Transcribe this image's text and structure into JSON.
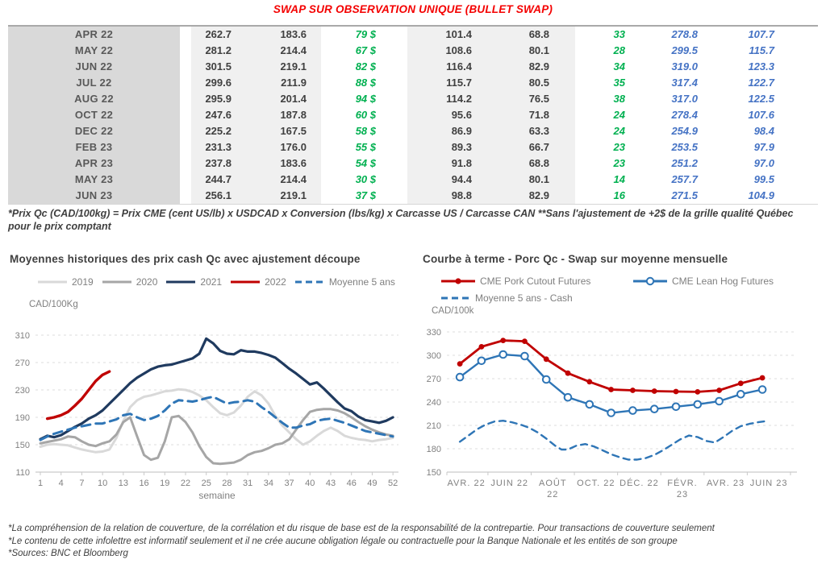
{
  "header": {
    "title": "SWAP SUR OBSERVATION UNIQUE (BULLET SWAP)"
  },
  "table": {
    "rows": [
      {
        "cells": [
          "APR 22",
          "262.7",
          "183.6",
          "79 $",
          "101.4",
          "68.8",
          "33",
          "278.8",
          "107.7"
        ]
      },
      {
        "cells": [
          "MAY 22",
          "281.2",
          "214.4",
          "67 $",
          "108.6",
          "80.1",
          "28",
          "299.5",
          "115.7"
        ]
      },
      {
        "cells": [
          "JUN 22",
          "301.5",
          "219.1",
          "82 $",
          "116.4",
          "82.9",
          "34",
          "319.0",
          "123.3"
        ]
      },
      {
        "cells": [
          "JUL 22",
          "299.6",
          "211.9",
          "88 $",
          "115.7",
          "80.5",
          "35",
          "317.4",
          "122.7"
        ]
      },
      {
        "cells": [
          "AUG 22",
          "295.9",
          "201.4",
          "94 $",
          "114.2",
          "76.5",
          "38",
          "317.0",
          "122.5"
        ]
      },
      {
        "cells": [
          "OCT 22",
          "247.6",
          "187.8",
          "60 $",
          "95.6",
          "71.8",
          "24",
          "278.4",
          "107.6"
        ]
      },
      {
        "cells": [
          "DEC 22",
          "225.2",
          "167.5",
          "58 $",
          "86.9",
          "63.3",
          "24",
          "254.9",
          "98.4"
        ]
      },
      {
        "cells": [
          "FEB 23",
          "231.3",
          "176.0",
          "55 $",
          "89.3",
          "66.7",
          "23",
          "253.5",
          "97.9"
        ]
      },
      {
        "cells": [
          "APR 23",
          "237.8",
          "183.6",
          "54 $",
          "91.8",
          "68.8",
          "23",
          "251.2",
          "97.0"
        ]
      },
      {
        "cells": [
          "MAY 23",
          "244.7",
          "214.4",
          "30 $",
          "94.4",
          "80.1",
          "14",
          "257.7",
          "99.5"
        ]
      },
      {
        "cells": [
          "JUN 23",
          "256.1",
          "219.1",
          "37 $",
          "98.8",
          "82.9",
          "16",
          "271.5",
          "104.9"
        ]
      }
    ],
    "cell_names": [
      "month-cell",
      "value-col-1",
      "value-col-2",
      "basis-dollar-col",
      "value-col-3",
      "value-col-4",
      "basis-col",
      "cme-cad-col",
      "cme-lean-cad-col"
    ]
  },
  "table_footnote": "*Prix Qc (CAD/100kg) = Prix CME (cent US/lb) x USDCAD x Conversion (lbs/kg) x Carcasse US / Carcasse CAN **Sans l'ajustement de +2$ de la grille qualité Québec pour le prix comptant",
  "colors": {
    "title_red": "#f40000",
    "green_accent": "#00b050",
    "blue_accent": "#4472c4",
    "navy_line": "#1f3a5f",
    "red_line": "#c00000",
    "blue_line": "#2e75b6",
    "gray_line": "#a6a6a6",
    "light_gray_line": "#d9d9d9"
  },
  "chart_data": [
    {
      "type": "line",
      "title": "Moyennes historiques des prix cash Qc avec ajustement découpe",
      "unit_label": "CAD/100Kg",
      "xlabel": "semaine",
      "ylim": [
        110,
        310
      ],
      "xlim": [
        0.3,
        52.8
      ],
      "yticks": [
        110,
        150,
        190,
        230,
        270,
        310
      ],
      "xticks": [
        {
          "x": 1,
          "l1": "1"
        },
        {
          "x": 4,
          "l1": "4"
        },
        {
          "x": 7,
          "l1": "7"
        },
        {
          "x": 10,
          "l1": "10"
        },
        {
          "x": 13,
          "l1": "13"
        },
        {
          "x": 16,
          "l1": "16"
        },
        {
          "x": 19,
          "l1": "19"
        },
        {
          "x": 22,
          "l1": "22"
        },
        {
          "x": 25,
          "l1": "25"
        },
        {
          "x": 28,
          "l1": "28"
        },
        {
          "x": 31,
          "l1": "31"
        },
        {
          "x": 34,
          "l1": "34"
        },
        {
          "x": 37,
          "l1": "37"
        },
        {
          "x": 40,
          "l1": "40"
        },
        {
          "x": 43,
          "l1": "43"
        },
        {
          "x": 46,
          "l1": "46"
        },
        {
          "x": 49,
          "l1": "49"
        },
        {
          "x": 52,
          "l1": "52"
        }
      ],
      "xtick_marks": [
        1,
        4,
        7,
        10,
        13,
        16,
        19,
        22,
        25,
        28,
        31,
        34,
        37,
        40,
        43,
        46,
        49,
        52
      ],
      "grid": true,
      "legend_position": "top",
      "series": [
        {
          "name": "2019",
          "color": "#d9d9d9",
          "width": 3,
          "x_start": 1,
          "y": [
            147,
            150,
            151,
            150,
            149,
            146,
            143,
            141,
            139,
            140,
            143,
            160,
            185,
            205,
            215,
            220,
            222,
            225,
            228,
            229,
            231,
            230,
            227,
            222,
            215,
            205,
            196,
            193,
            197,
            207,
            220,
            228,
            222,
            210,
            192,
            178,
            168,
            158,
            150,
            155,
            163,
            170,
            175,
            170,
            163,
            160,
            158,
            157,
            155,
            157,
            158,
            160
          ]
        },
        {
          "name": "2020",
          "color": "#a6a6a6",
          "width": 3,
          "x_start": 1,
          "y": [
            152,
            154,
            156,
            158,
            162,
            161,
            155,
            150,
            148,
            152,
            155,
            165,
            183,
            190,
            162,
            135,
            128,
            131,
            155,
            190,
            192,
            183,
            168,
            148,
            132,
            123,
            122,
            123,
            124,
            128,
            135,
            139,
            141,
            145,
            150,
            152,
            158,
            172,
            186,
            198,
            201,
            202,
            202,
            200,
            196,
            190,
            183,
            177,
            172,
            168,
            165,
            163
          ]
        },
        {
          "name": "2021",
          "color": "#1f3a5f",
          "width": 3.2,
          "x_start": 1,
          "y": [
            158,
            163,
            161,
            164,
            170,
            176,
            181,
            188,
            193,
            200,
            210,
            220,
            230,
            240,
            248,
            254,
            260,
            264,
            266,
            267,
            270,
            273,
            276,
            283,
            305,
            298,
            287,
            283,
            282,
            288,
            286,
            286,
            284,
            281,
            277,
            269,
            261,
            254,
            246,
            238,
            241,
            232,
            222,
            212,
            203,
            199,
            191,
            186,
            184,
            182,
            185,
            190
          ]
        },
        {
          "name": "2022",
          "color": "#c00000",
          "width": 3.4,
          "x_start": 2,
          "y": [
            188,
            190,
            193,
            198,
            207,
            217,
            230,
            243,
            252,
            257
          ]
        },
        {
          "name": "Moyenne 5 ans",
          "color": "#2e75b6",
          "width": 3,
          "dash": "11 7",
          "x_start": 1,
          "y": [
            157,
            162,
            166,
            169,
            172,
            175,
            177,
            179,
            181,
            181,
            184,
            187,
            193,
            195,
            190,
            186,
            188,
            192,
            200,
            210,
            215,
            214,
            213,
            215,
            218,
            220,
            215,
            210,
            212,
            213,
            215,
            213,
            205,
            198,
            190,
            182,
            175,
            175,
            178,
            180,
            185,
            187,
            188,
            185,
            182,
            178,
            174,
            170,
            168,
            166,
            164,
            162
          ]
        }
      ]
    },
    {
      "type": "line",
      "title": "Courbe à terme - Porc Qc - Swap sur moyenne mensuelle",
      "unit_label": "CAD/100k",
      "xlabel": "",
      "ylim": [
        150,
        330
      ],
      "xlim": [
        -0.6,
        15.6
      ],
      "yticks": [
        150,
        180,
        210,
        240,
        270,
        300,
        330
      ],
      "xticks": [
        {
          "x": 0.3,
          "l1": "AVR. 22"
        },
        {
          "x": 2.3,
          "l1": "JUIN 22"
        },
        {
          "x": 4.3,
          "l1": "AOÛT",
          "l2": "22"
        },
        {
          "x": 6.3,
          "l1": "OCT. 22"
        },
        {
          "x": 8.3,
          "l1": "DÉC. 22"
        },
        {
          "x": 10.3,
          "l1": "FÉVR.",
          "l2": "23"
        },
        {
          "x": 12.3,
          "l1": "AVR. 23"
        },
        {
          "x": 14.3,
          "l1": "JUIN 23"
        }
      ],
      "xtick_marks": [
        -0.6,
        1.3,
        3.3,
        5.3,
        7.3,
        9.3,
        11.3,
        13.3,
        15.3
      ],
      "grid": true,
      "legend_position": "top",
      "x_categories_note": "monthly from AVR 22 (index 0) to JUIN 23 (index 14)",
      "series": [
        {
          "name": "CME Pork Cutout Futures",
          "color": "#c00000",
          "width": 2.8,
          "marker": "filled",
          "x_start": 0,
          "y": [
            289,
            311,
            319,
            318,
            295,
            277,
            266,
            256,
            255,
            254,
            253.5,
            253,
            255,
            264,
            271
          ]
        },
        {
          "name": "CME Lean Hog Futures",
          "color": "#2e75b6",
          "width": 2.4,
          "marker": "open",
          "x_start": 0,
          "y": [
            272,
            293,
            301,
            299,
            269,
            246,
            237,
            226,
            229,
            231,
            234,
            237,
            241,
            250,
            256
          ]
        },
        {
          "name": "Moyenne 5 ans - Cash",
          "color": "#2e75b6",
          "width": 2.4,
          "dash": "8 6",
          "x": [
            0,
            0.4,
            0.8,
            1.2,
            1.6,
            2,
            2.4,
            2.8,
            3.2,
            3.6,
            4,
            4.4,
            4.7,
            5,
            5.4,
            5.8,
            6.2,
            6.6,
            7,
            7.4,
            7.8,
            8.2,
            8.6,
            9,
            9.4,
            9.8,
            10.2,
            10.6,
            11,
            11.4,
            11.8,
            12.2,
            12.6,
            13,
            13.4,
            13.8,
            14.3
          ],
          "y": [
            189,
            197,
            205,
            211,
            215,
            216,
            214,
            211,
            207,
            201,
            193,
            184,
            179,
            179,
            184,
            186,
            183,
            178,
            173,
            169,
            166,
            166,
            168,
            172,
            178,
            185,
            192,
            197,
            195,
            190,
            188,
            195,
            203,
            209,
            212,
            214,
            216
          ]
        }
      ]
    }
  ],
  "footer": {
    "lines": [
      "*La compréhension de la relation de couverture, de la corrélation et du risque de base est de la responsabilité de la contrepartie. Pour transactions de couverture seulement",
      "*Le contenu de cette infolettre est informatif seulement et il ne crée aucune obligation légale ou contractuelle pour la Banque Nationale et les entités de son groupe",
      "*Sources: BNC et Bloomberg"
    ]
  }
}
